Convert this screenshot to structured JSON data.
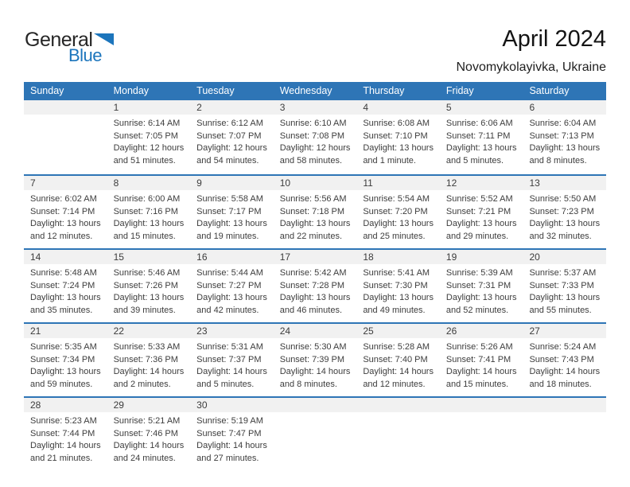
{
  "logo": {
    "word1": "General",
    "word2": "Blue",
    "accent_color": "#1c75bc"
  },
  "header": {
    "title": "April 2024",
    "subtitle": "Novomykolayivka, Ukraine"
  },
  "colors": {
    "header_bar": "#2e75b6",
    "row_separator": "#2e75b6",
    "day_number_band": "#f1f1f1",
    "weekday_text": "#ffffff"
  },
  "calendar": {
    "weekday_headers": [
      "Sunday",
      "Monday",
      "Tuesday",
      "Wednesday",
      "Thursday",
      "Friday",
      "Saturday"
    ],
    "labels": {
      "sunrise": "Sunrise:",
      "sunset": "Sunset:",
      "daylight": "Daylight:"
    },
    "weeks": [
      [
        null,
        {
          "day": "1",
          "sunrise": "6:14 AM",
          "sunset": "7:05 PM",
          "daylight": "12 hours and 51 minutes."
        },
        {
          "day": "2",
          "sunrise": "6:12 AM",
          "sunset": "7:07 PM",
          "daylight": "12 hours and 54 minutes."
        },
        {
          "day": "3",
          "sunrise": "6:10 AM",
          "sunset": "7:08 PM",
          "daylight": "12 hours and 58 minutes."
        },
        {
          "day": "4",
          "sunrise": "6:08 AM",
          "sunset": "7:10 PM",
          "daylight": "13 hours and 1 minute."
        },
        {
          "day": "5",
          "sunrise": "6:06 AM",
          "sunset": "7:11 PM",
          "daylight": "13 hours and 5 minutes."
        },
        {
          "day": "6",
          "sunrise": "6:04 AM",
          "sunset": "7:13 PM",
          "daylight": "13 hours and 8 minutes."
        }
      ],
      [
        {
          "day": "7",
          "sunrise": "6:02 AM",
          "sunset": "7:14 PM",
          "daylight": "13 hours and 12 minutes."
        },
        {
          "day": "8",
          "sunrise": "6:00 AM",
          "sunset": "7:16 PM",
          "daylight": "13 hours and 15 minutes."
        },
        {
          "day": "9",
          "sunrise": "5:58 AM",
          "sunset": "7:17 PM",
          "daylight": "13 hours and 19 minutes."
        },
        {
          "day": "10",
          "sunrise": "5:56 AM",
          "sunset": "7:18 PM",
          "daylight": "13 hours and 22 minutes."
        },
        {
          "day": "11",
          "sunrise": "5:54 AM",
          "sunset": "7:20 PM",
          "daylight": "13 hours and 25 minutes."
        },
        {
          "day": "12",
          "sunrise": "5:52 AM",
          "sunset": "7:21 PM",
          "daylight": "13 hours and 29 minutes."
        },
        {
          "day": "13",
          "sunrise": "5:50 AM",
          "sunset": "7:23 PM",
          "daylight": "13 hours and 32 minutes."
        }
      ],
      [
        {
          "day": "14",
          "sunrise": "5:48 AM",
          "sunset": "7:24 PM",
          "daylight": "13 hours and 35 minutes."
        },
        {
          "day": "15",
          "sunrise": "5:46 AM",
          "sunset": "7:26 PM",
          "daylight": "13 hours and 39 minutes."
        },
        {
          "day": "16",
          "sunrise": "5:44 AM",
          "sunset": "7:27 PM",
          "daylight": "13 hours and 42 minutes."
        },
        {
          "day": "17",
          "sunrise": "5:42 AM",
          "sunset": "7:28 PM",
          "daylight": "13 hours and 46 minutes."
        },
        {
          "day": "18",
          "sunrise": "5:41 AM",
          "sunset": "7:30 PM",
          "daylight": "13 hours and 49 minutes."
        },
        {
          "day": "19",
          "sunrise": "5:39 AM",
          "sunset": "7:31 PM",
          "daylight": "13 hours and 52 minutes."
        },
        {
          "day": "20",
          "sunrise": "5:37 AM",
          "sunset": "7:33 PM",
          "daylight": "13 hours and 55 minutes."
        }
      ],
      [
        {
          "day": "21",
          "sunrise": "5:35 AM",
          "sunset": "7:34 PM",
          "daylight": "13 hours and 59 minutes."
        },
        {
          "day": "22",
          "sunrise": "5:33 AM",
          "sunset": "7:36 PM",
          "daylight": "14 hours and 2 minutes."
        },
        {
          "day": "23",
          "sunrise": "5:31 AM",
          "sunset": "7:37 PM",
          "daylight": "14 hours and 5 minutes."
        },
        {
          "day": "24",
          "sunrise": "5:30 AM",
          "sunset": "7:39 PM",
          "daylight": "14 hours and 8 minutes."
        },
        {
          "day": "25",
          "sunrise": "5:28 AM",
          "sunset": "7:40 PM",
          "daylight": "14 hours and 12 minutes."
        },
        {
          "day": "26",
          "sunrise": "5:26 AM",
          "sunset": "7:41 PM",
          "daylight": "14 hours and 15 minutes."
        },
        {
          "day": "27",
          "sunrise": "5:24 AM",
          "sunset": "7:43 PM",
          "daylight": "14 hours and 18 minutes."
        }
      ],
      [
        {
          "day": "28",
          "sunrise": "5:23 AM",
          "sunset": "7:44 PM",
          "daylight": "14 hours and 21 minutes."
        },
        {
          "day": "29",
          "sunrise": "5:21 AM",
          "sunset": "7:46 PM",
          "daylight": "14 hours and 24 minutes."
        },
        {
          "day": "30",
          "sunrise": "5:19 AM",
          "sunset": "7:47 PM",
          "daylight": "14 hours and 27 minutes."
        },
        null,
        null,
        null,
        null
      ]
    ]
  }
}
